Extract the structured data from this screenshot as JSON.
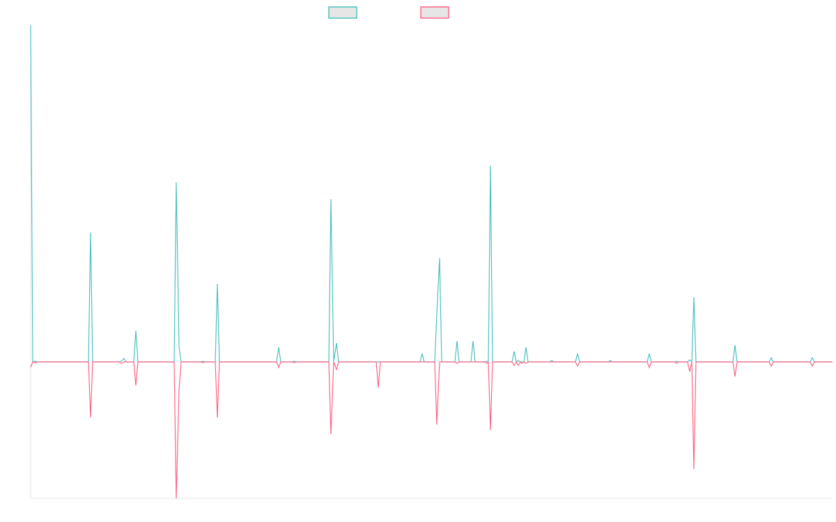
{
  "chart_data": {
    "type": "line",
    "x": [
      0,
      3,
      7,
      10,
      83,
      86,
      89,
      127,
      130,
      134,
      137,
      148,
      151,
      154,
      206,
      209,
      213,
      216,
      244,
      247,
      250,
      265,
      268,
      271,
      353,
      356,
      359,
      375,
      378,
      381,
      428,
      431,
      435,
      439,
      442,
      496,
      499,
      502,
      559,
      562,
      565,
      580,
      583,
      587,
      590,
      609,
      612,
      615,
      632,
      635,
      638,
      652,
      655,
      657,
      660,
      663,
      691,
      694,
      697,
      700,
      703,
      705,
      708,
      711,
      714,
      745,
      748,
      751,
      782,
      785,
      788,
      829,
      832,
      835,
      885,
      888,
      891,
      924,
      927,
      930,
      943,
      946,
      949,
      952,
      955,
      1008,
      1011,
      1014,
      1060,
      1063,
      1066,
      1119,
      1122,
      1125,
      1151
    ],
    "series": [
      {
        "color": "#4bc0c0",
        "values": [
          484,
          0,
          1,
          0,
          0,
          186,
          0,
          0,
          1,
          5,
          0,
          0,
          45,
          0,
          0,
          258,
          21,
          0,
          0,
          1,
          0,
          0,
          112,
          0,
          0,
          21,
          0,
          0,
          1,
          0,
          0,
          234,
          0,
          27,
          0,
          0,
          0,
          0,
          0,
          12,
          0,
          0,
          69,
          149,
          0,
          0,
          30,
          0,
          0,
          30,
          0,
          0,
          1,
          0,
          282,
          0,
          0,
          15,
          0,
          2,
          0,
          0,
          0,
          21,
          0,
          0,
          2,
          0,
          0,
          12,
          0,
          0,
          2,
          0,
          0,
          12,
          0,
          0,
          1,
          0,
          0,
          3,
          0,
          93,
          0,
          0,
          24,
          0,
          0,
          6,
          0,
          0,
          6,
          0,
          0
        ]
      },
      {
        "color": "#ff6384",
        "values": [
          -8,
          0,
          -1,
          0,
          0,
          -80,
          0,
          0,
          -2,
          0,
          0,
          0,
          -34,
          0,
          0,
          -196,
          -40,
          0,
          0,
          -1,
          0,
          0,
          -80,
          0,
          0,
          -8,
          0,
          0,
          -1,
          0,
          0,
          -104,
          0,
          -11,
          0,
          0,
          -37,
          0,
          0,
          0,
          0,
          0,
          -90,
          0,
          0,
          0,
          -2,
          0,
          0,
          0,
          0,
          0,
          -2,
          0,
          -98,
          0,
          0,
          -5,
          0,
          -5,
          0,
          -2,
          0,
          -2,
          0,
          0,
          0,
          0,
          0,
          -6,
          0,
          0,
          0,
          0,
          0,
          -8,
          0,
          0,
          -2,
          0,
          0,
          -14,
          0,
          -154,
          0,
          0,
          -21,
          0,
          0,
          -6,
          0,
          0,
          -6,
          0,
          0
        ]
      }
    ],
    "xlim": [
      0,
      1151
    ],
    "ylim": [
      -196,
      484
    ]
  }
}
